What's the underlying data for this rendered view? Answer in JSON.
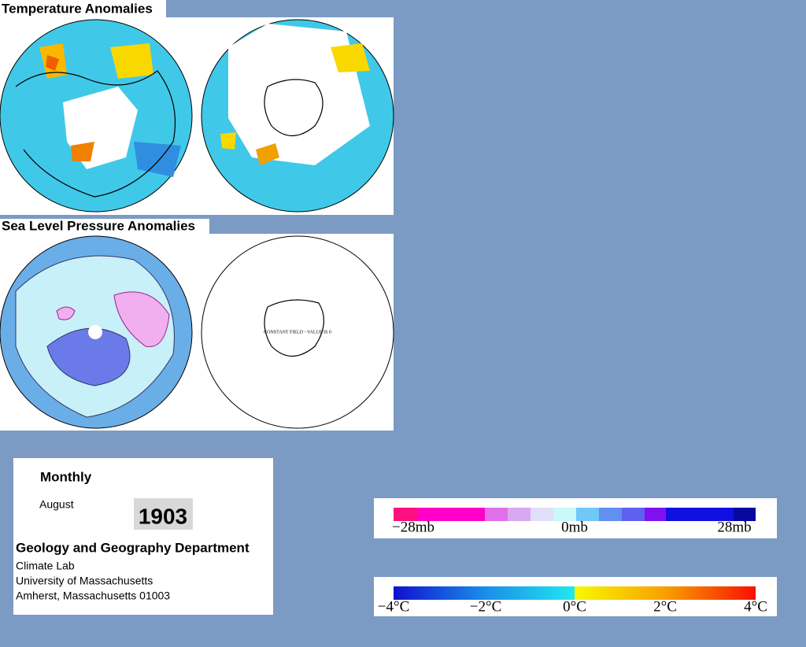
{
  "panels": [
    {
      "title": "Temperature Anomalies"
    },
    {
      "title": "Sea Level Pressure Anomalies",
      "annotation": "CONSTANT FIELD - VALUE IS 0"
    }
  ],
  "info": {
    "period": "Monthly",
    "month": "August",
    "year": "1903",
    "department": "Geology and Geography Department",
    "lines": [
      "Climate Lab",
      "University of Massachusetts",
      "Amherst, Massachusetts 01003"
    ]
  },
  "legends": [
    {
      "labels": [
        "−28mb",
        "0mb",
        "28mb"
      ]
    },
    {
      "labels": [
        "−4°C",
        "−2°C",
        "0°C",
        "2°C",
        "4°C"
      ]
    }
  ]
}
